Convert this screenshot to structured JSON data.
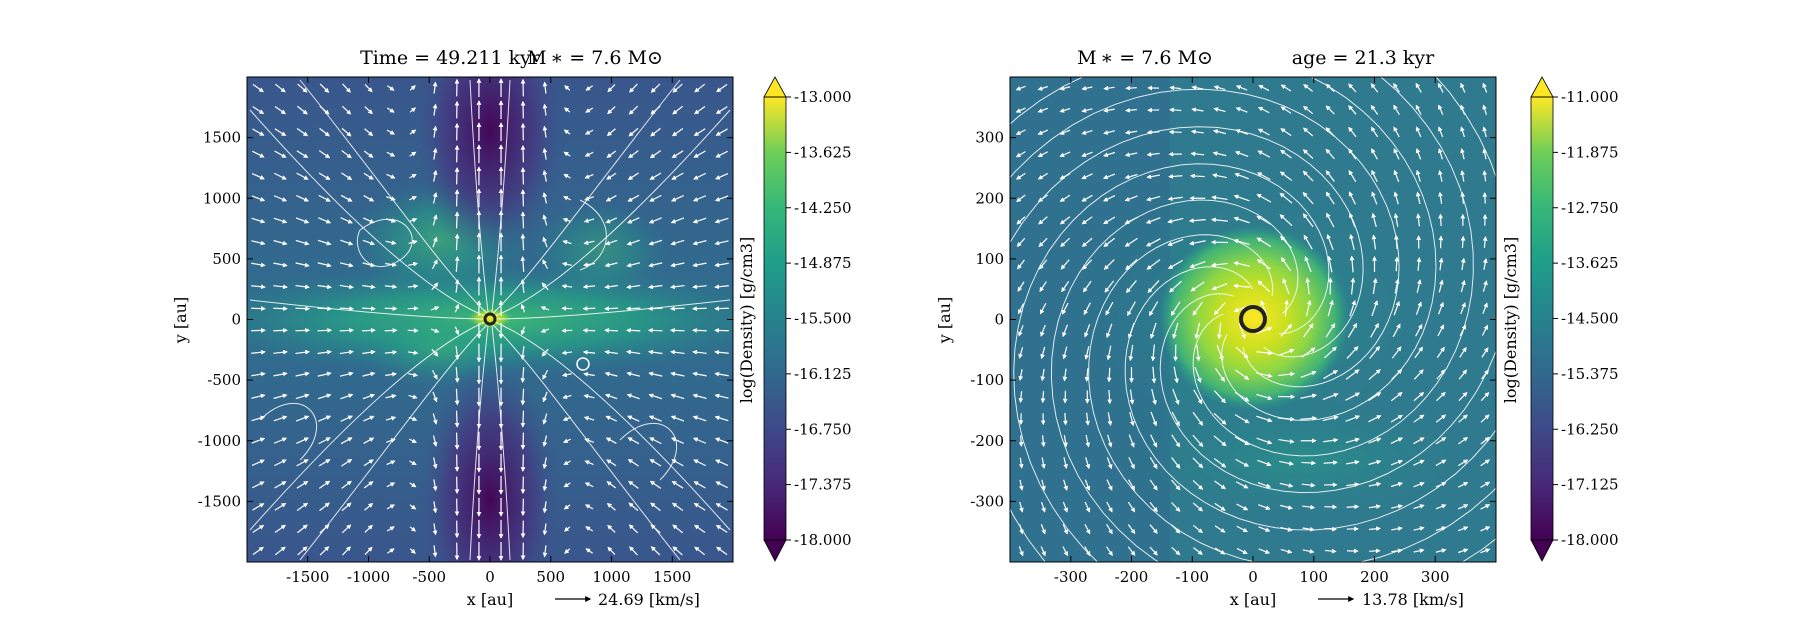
{
  "chart_data": [
    {
      "type": "heatmap",
      "title_left": "Time = 49.211 kyr",
      "title_right": "M ∗ = 7.6 M⊙",
      "xlabel": "x [au]",
      "ylabel": "y [au]",
      "xlim": [
        -2000,
        2000
      ],
      "ylim": [
        -2000,
        2000
      ],
      "xticks": [
        -1500,
        -1000,
        -500,
        0,
        500,
        1000,
        1500
      ],
      "yticks": [
        1500,
        1000,
        500,
        0,
        -500,
        -1000,
        -1500
      ],
      "velocity_key": "24.69 [km/s]",
      "colorbar": {
        "label": "log(Density) [g/cm3]",
        "min": -18.0,
        "max": -13.0,
        "ticks": [
          "-13.000",
          "-13.625",
          "-14.250",
          "-14.875",
          "-15.500",
          "-16.125",
          "-16.750",
          "-17.375",
          "-18.000"
        ],
        "colormap": "viridis"
      },
      "features": [
        "dense equatorial disk along y = 0",
        "low-density bipolar outflow cavities along x = 0",
        "sink particle at origin",
        "small vortex near (770, -380)"
      ]
    },
    {
      "type": "heatmap",
      "title_left": "M ∗ = 7.6 M⊙",
      "title_right": "age = 21.3 kyr",
      "xlabel": "x [au]",
      "ylabel": "y [au]",
      "xlim": [
        -400,
        400
      ],
      "ylim": [
        -400,
        400
      ],
      "xticks": [
        -300,
        -200,
        -100,
        0,
        100,
        200,
        300
      ],
      "yticks": [
        300,
        200,
        100,
        0,
        -100,
        -200,
        -300
      ],
      "velocity_key": "13.78 [km/s]",
      "colorbar": {
        "label": "log(Density) [g/cm3]",
        "min": -18.0,
        "max": -11.0,
        "ticks": [
          "-11.000",
          "-11.875",
          "-12.750",
          "-13.625",
          "-14.500",
          "-15.375",
          "-16.250",
          "-17.125",
          "-18.000"
        ],
        "colormap": "viridis"
      },
      "features": [
        "dense rotating core around origin",
        "spiral accretion streamlines",
        "sink particle at origin"
      ]
    }
  ]
}
